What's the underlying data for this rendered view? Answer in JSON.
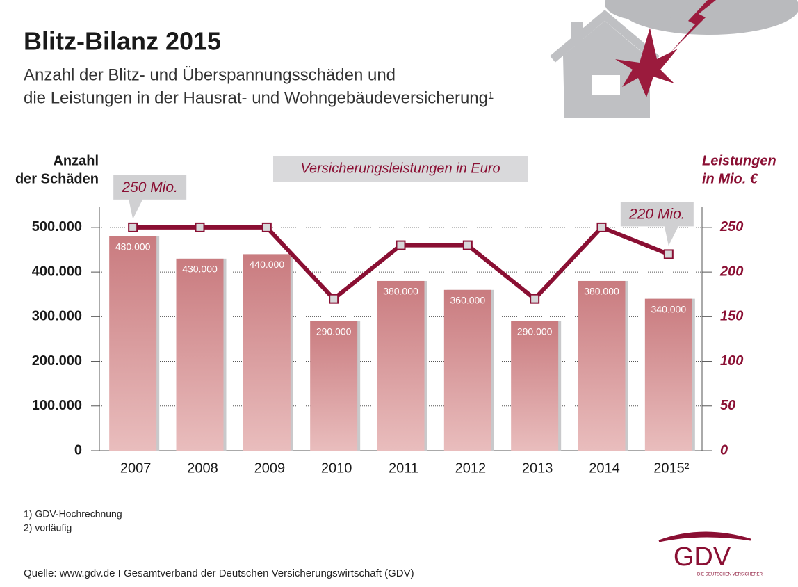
{
  "chart_data": {
    "type": "bar",
    "title": "Blitz-Bilanz 2015",
    "subtitle": [
      "Anzahl der Blitz- und Überspannungsschäden und",
      "die Leistungen in der Hausrat- und Wohngebäudeversicherung¹"
    ],
    "y_label": [
      "Anzahl",
      "der Schäden"
    ],
    "y2_label": [
      "Leistungen",
      "in Mio. €"
    ],
    "categories": [
      "2007",
      "2008",
      "2009",
      "2010",
      "2011",
      "2012",
      "2013",
      "2014",
      "2015²"
    ],
    "series": [
      {
        "type": "bar",
        "color": "#c97b7f",
        "values": [
          480000,
          430000,
          440000,
          290000,
          380000,
          360000,
          290000,
          380000,
          340000
        ],
        "value_labels": [
          "480.000",
          "430.000",
          "440.000",
          "290.000",
          "380.000",
          "360.000",
          "290.000",
          "380.000",
          "340.000"
        ]
      },
      {
        "type": "line",
        "name": "Versicherungsleistungen in Euro",
        "color": "#8a0f33",
        "axis": "y2",
        "values": [
          250,
          250,
          250,
          170,
          230,
          230,
          170,
          250,
          220
        ]
      }
    ],
    "annotations": [
      "250 Mio.",
      "220 Mio."
    ],
    "ylim": [
      0,
      545000
    ],
    "yticks": [
      {
        "value": 0,
        "label": "0"
      },
      {
        "value": 100000,
        "label": "100.000"
      },
      {
        "value": 200000,
        "label": "200.000"
      },
      {
        "value": 300000,
        "label": "300.000"
      },
      {
        "value": 400000,
        "label": "400.000"
      },
      {
        "value": 500000,
        "label": "500.000"
      }
    ],
    "y2lim": [
      0,
      272.5
    ],
    "y2ticks": [
      0,
      50,
      100,
      150,
      200,
      250
    ],
    "grid": true,
    "footnotes": [
      "1) GDV-Hochrechnung",
      "2) vorläufig"
    ],
    "source": "Quelle: www.gdv.de I Gesamtverband der Deutschen Versicherungswirtschaft (GDV)",
    "logo": [
      "GDV",
      "DIE DEUTSCHEN VERSICHERER"
    ]
  }
}
